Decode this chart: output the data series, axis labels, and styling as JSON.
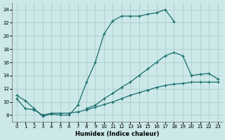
{
  "xlabel": "Humidex (Indice chaleur)",
  "xlim_min": -0.5,
  "xlim_max": 23.5,
  "ylim_min": 7,
  "ylim_max": 25,
  "xticks": [
    0,
    1,
    2,
    3,
    4,
    5,
    6,
    7,
    8,
    9,
    10,
    11,
    12,
    13,
    14,
    15,
    16,
    17,
    18,
    19,
    20,
    21,
    22,
    23
  ],
  "yticks": [
    8,
    10,
    12,
    14,
    16,
    18,
    20,
    22,
    24
  ],
  "bg_color": "#cce8e8",
  "line_color": "#1a6e6e",
  "grid_color": "#b0d0d0",
  "line1_x": [
    0,
    1,
    2,
    3,
    4,
    5,
    6,
    7,
    8,
    9,
    10,
    11,
    12,
    13,
    14,
    15,
    16,
    17,
    18
  ],
  "line1_y": [
    11,
    10.2,
    9.0,
    7.8,
    8.2,
    8.0,
    8.0,
    9.5,
    13.0,
    16.0,
    20.3,
    22.3,
    23.0,
    23.0,
    23.0,
    23.3,
    23.5,
    24.0,
    22.2
  ],
  "line2_x": [
    8,
    9,
    10,
    11,
    12,
    13,
    14,
    15,
    16,
    17,
    18,
    19,
    20,
    21,
    22,
    23
  ],
  "line2_y": [
    9.0,
    9.5,
    10.5,
    11.3,
    12.2,
    13.0,
    14.0,
    15.0,
    16.0,
    17.0,
    17.5,
    17.0,
    14.0,
    14.2,
    14.3,
    13.5
  ],
  "line3_x": [
    0,
    1,
    2,
    3,
    4,
    5,
    6,
    7,
    8,
    9,
    10,
    11,
    12,
    13,
    14,
    15,
    16,
    17,
    18,
    19,
    20,
    21,
    22,
    23
  ],
  "line3_y": [
    10.5,
    9.0,
    8.8,
    8.0,
    8.3,
    8.3,
    8.3,
    8.5,
    8.8,
    9.2,
    9.6,
    10.0,
    10.5,
    11.0,
    11.4,
    11.8,
    12.2,
    12.5,
    12.7,
    12.8,
    13.0,
    13.0,
    13.0,
    13.0
  ]
}
